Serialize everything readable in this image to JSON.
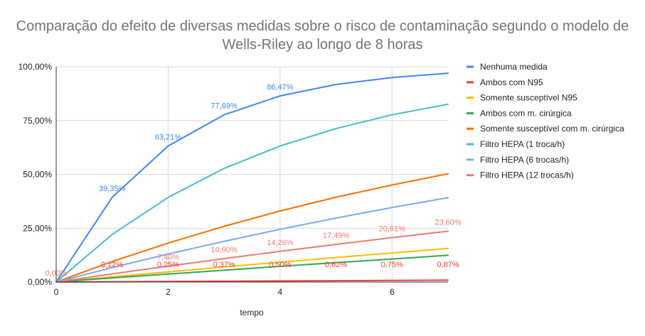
{
  "chart_data": {
    "type": "line",
    "title_lines": [
      "Comparação do efeito de diversas medidas sobre o risco de contaminação segundo o modelo de",
      "Wells-Riley ao longo de 8 horas"
    ],
    "xlabel": "tempo",
    "ylabel": "",
    "xlim": [
      0,
      7
    ],
    "ylim": [
      0,
      100
    ],
    "x_ticks": [
      0,
      2,
      4,
      6
    ],
    "y_ticks": [
      "0,00%",
      "25,00%",
      "50,00%",
      "75,00%",
      "100,00%"
    ],
    "y_tick_values": [
      0,
      25,
      50,
      75,
      100
    ],
    "x": [
      0,
      1,
      2,
      3,
      4,
      5,
      6,
      7
    ],
    "grid": true,
    "legend_position": "right",
    "series": [
      {
        "name": "Nenhuma medida",
        "color": "#4285f4",
        "values": [
          0,
          39.35,
          63.21,
          77.69,
          86.47,
          91.79,
          95.02,
          96.98
        ],
        "labels": [
          null,
          "39,35%",
          "63,21%",
          "77,69%",
          "86,47%",
          null,
          null,
          null
        ]
      },
      {
        "name": "Ambos com N95",
        "color": "#ea4335",
        "values": [
          0,
          0.12,
          0.25,
          0.37,
          0.5,
          0.62,
          0.75,
          0.87
        ],
        "labels": [
          null,
          "0,12%",
          "0,25%",
          "0,37%",
          "0,50%",
          "0,62%",
          "0,75%",
          "0,87%"
        ]
      },
      {
        "name": "Somente susceptível N95",
        "color": "#fbbc04",
        "values": [
          0,
          2.4,
          4.7,
          7.0,
          9.2,
          11.4,
          13.5,
          15.6
        ],
        "labels": [
          null,
          null,
          null,
          null,
          null,
          null,
          null,
          null
        ]
      },
      {
        "name": "Ambos com m. cirúrgica",
        "color": "#34a853",
        "values": [
          0,
          1.9,
          3.7,
          5.5,
          7.3,
          9.0,
          10.7,
          12.4
        ],
        "labels": [
          null,
          null,
          null,
          null,
          null,
          null,
          null,
          null
        ]
      },
      {
        "name": "Somente susceptível com m. cirúrgica",
        "color": "#ff6d01",
        "values": [
          0,
          9.5,
          18.1,
          25.9,
          33.0,
          39.4,
          45.1,
          50.3
        ],
        "labels": [
          null,
          null,
          null,
          null,
          null,
          null,
          null,
          null
        ]
      },
      {
        "name": "Filtro HEPA (1 troca/h)",
        "color": "#46bdc6",
        "values": [
          0,
          22.1,
          39.3,
          52.8,
          63.2,
          71.3,
          77.7,
          82.6
        ],
        "labels": [
          null,
          null,
          null,
          null,
          null,
          null,
          null,
          null
        ]
      },
      {
        "name": "Filtro HEPA (6 trocas/h)",
        "color": "#7baaf7",
        "values": [
          0,
          6.7,
          13.0,
          18.9,
          24.5,
          29.7,
          34.6,
          39.2
        ],
        "labels": [
          null,
          null,
          null,
          null,
          null,
          null,
          null,
          null
        ]
      },
      {
        "name": "Filtro HEPA (12 trocas/h)",
        "color": "#f07b72",
        "values": [
          0,
          3.77,
          7.4,
          10.9,
          14.26,
          17.49,
          20.61,
          23.6
        ],
        "labels": [
          "0,00%",
          "3,77%",
          "7,40%",
          "10,90%",
          "14,26%",
          "17,49%",
          "20,61%",
          "23,60%"
        ]
      }
    ]
  }
}
